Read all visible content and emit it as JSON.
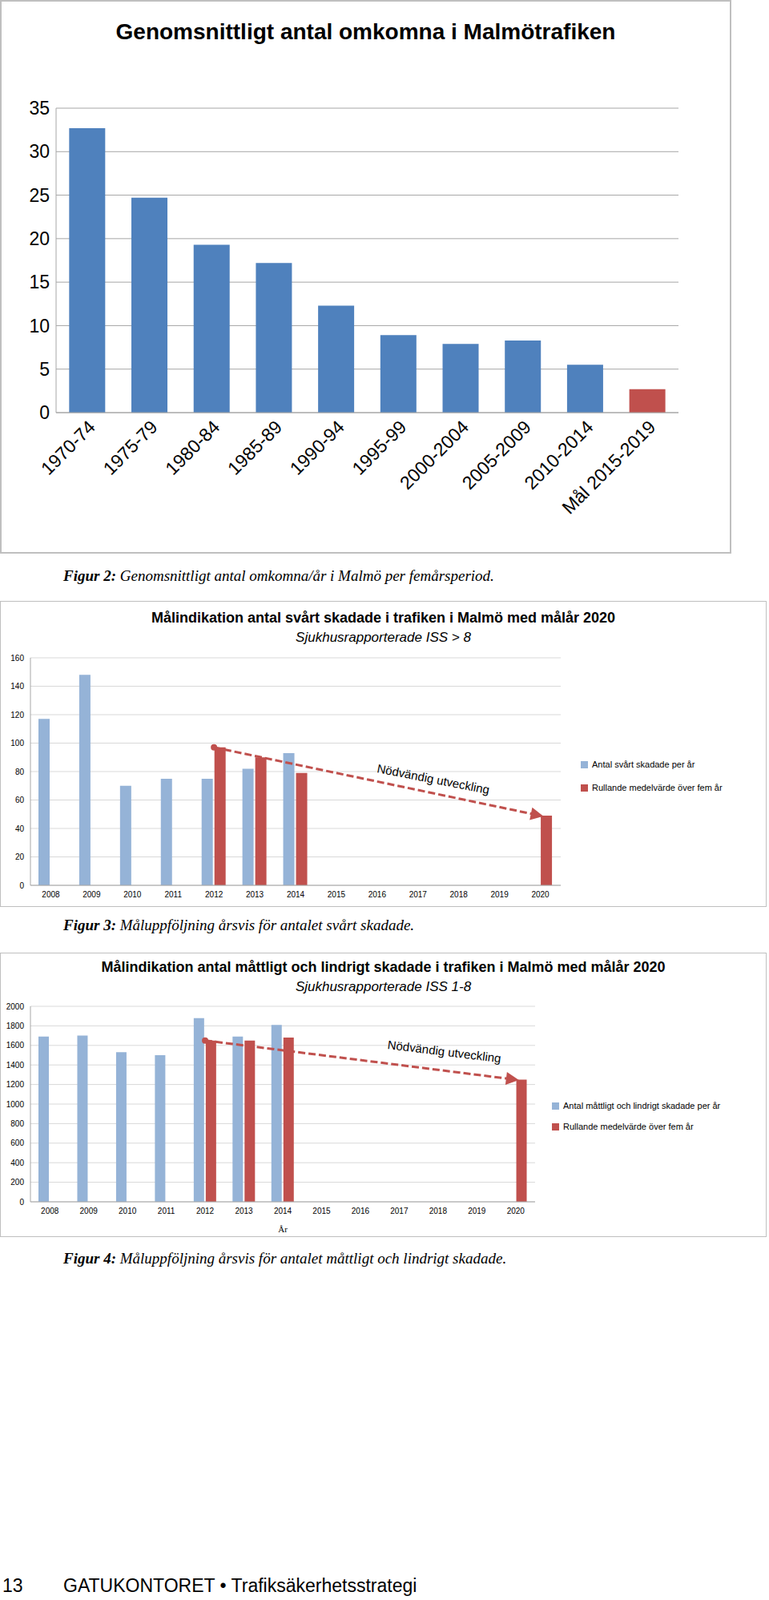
{
  "chart_data": [
    {
      "type": "bar",
      "title": "Genomsnittligt antal omkomna i Malmötrafiken",
      "categories": [
        "1970-74",
        "1975-79",
        "1980-84",
        "1985-89",
        "1990-94",
        "1995-99",
        "2000-2004",
        "2005-2009",
        "2010-2014",
        "Mål 2015-2019"
      ],
      "values": [
        32.7,
        24.7,
        19.3,
        17.2,
        12.3,
        8.9,
        7.9,
        8.3,
        5.5,
        2.7
      ],
      "colors": [
        "#4f81bd",
        "#4f81bd",
        "#4f81bd",
        "#4f81bd",
        "#4f81bd",
        "#4f81bd",
        "#4f81bd",
        "#4f81bd",
        "#4f81bd",
        "#c0504d"
      ],
      "ylim": [
        0,
        35
      ],
      "yticks": [
        0,
        5,
        10,
        15,
        20,
        25,
        30,
        35
      ],
      "grid": true
    },
    {
      "type": "bar",
      "title": "Målindikation antal svårt skadade i trafiken i Malmö med målår 2020",
      "subtitle": "Sjukhusrapporterade ISS > 8",
      "categories": [
        "2008",
        "2009",
        "2010",
        "2011",
        "2012",
        "2013",
        "2014",
        "2015",
        "2016",
        "2017",
        "2018",
        "2019",
        "2020"
      ],
      "series": [
        {
          "name": "Antal svårt skadade per år",
          "color": "#95b3d7",
          "values": [
            117,
            148,
            70,
            75,
            75,
            82,
            93,
            null,
            null,
            null,
            null,
            null,
            null
          ]
        },
        {
          "name": "Rullande medelvärde över fem år",
          "color": "#c0504d",
          "values": [
            null,
            null,
            null,
            null,
            97,
            90,
            79,
            null,
            null,
            null,
            null,
            null,
            49
          ]
        }
      ],
      "annotations": [
        {
          "text": "Nödvändig utveckling",
          "type": "line",
          "color": "#c0504d",
          "line_style": "dashed",
          "marker": "arrow",
          "values": [
            null,
            null,
            null,
            null,
            97,
            null,
            null,
            null,
            null,
            null,
            null,
            null,
            49
          ]
        }
      ],
      "ylim": [
        0,
        160
      ],
      "yticks": [
        0,
        20,
        40,
        60,
        80,
        100,
        120,
        140,
        160
      ],
      "grid": true,
      "legend": "right"
    },
    {
      "type": "bar",
      "title": "Målindikation antal måttligt och lindrigt skadade i trafiken i Malmö med målår 2020",
      "subtitle": "Sjukhusrapporterade ISS 1-8",
      "x_label": "År",
      "categories": [
        "2008",
        "2009",
        "2010",
        "2011",
        "2012",
        "2013",
        "2014",
        "2015",
        "2016",
        "2017",
        "2018",
        "2019",
        "2020"
      ],
      "series": [
        {
          "name": "Antal måttligt och lindrigt skadade per år",
          "color": "#95b3d7",
          "values": [
            1690,
            1700,
            1530,
            1500,
            1880,
            1690,
            1810,
            null,
            null,
            null,
            null,
            null,
            null
          ]
        },
        {
          "name": "Rullande medelvärde över fem år",
          "color": "#c0504d",
          "values": [
            null,
            null,
            null,
            null,
            1650,
            1650,
            1680,
            null,
            null,
            null,
            null,
            null,
            1250
          ]
        }
      ],
      "annotations": [
        {
          "text": "Nödvändig utveckling",
          "type": "line",
          "color": "#c0504d",
          "line_style": "dashed",
          "marker": "arrow",
          "values": [
            null,
            null,
            null,
            null,
            1650,
            null,
            null,
            null,
            null,
            null,
            null,
            null,
            1250
          ]
        }
      ],
      "ylim": [
        0,
        2000
      ],
      "yticks": [
        0,
        200,
        400,
        600,
        800,
        1000,
        1200,
        1400,
        1600,
        1800,
        2000
      ],
      "grid": true,
      "legend": "right"
    }
  ],
  "captions": [
    {
      "label": "Figur 2:",
      "text": "Genomsnittligt antal omkomna/år i Malmö per femårsperiod."
    },
    {
      "label": "Figur 3:",
      "text": "Måluppföljning årsvis för antalet svårt skadade."
    },
    {
      "label": "Figur 4:",
      "text": "Måluppföljning årsvis för antalet måttligt och lindrigt skadade."
    }
  ],
  "footer": {
    "page": 13,
    "text": "GATUKONTORET • Trafiksäkerhetsstrategi"
  }
}
